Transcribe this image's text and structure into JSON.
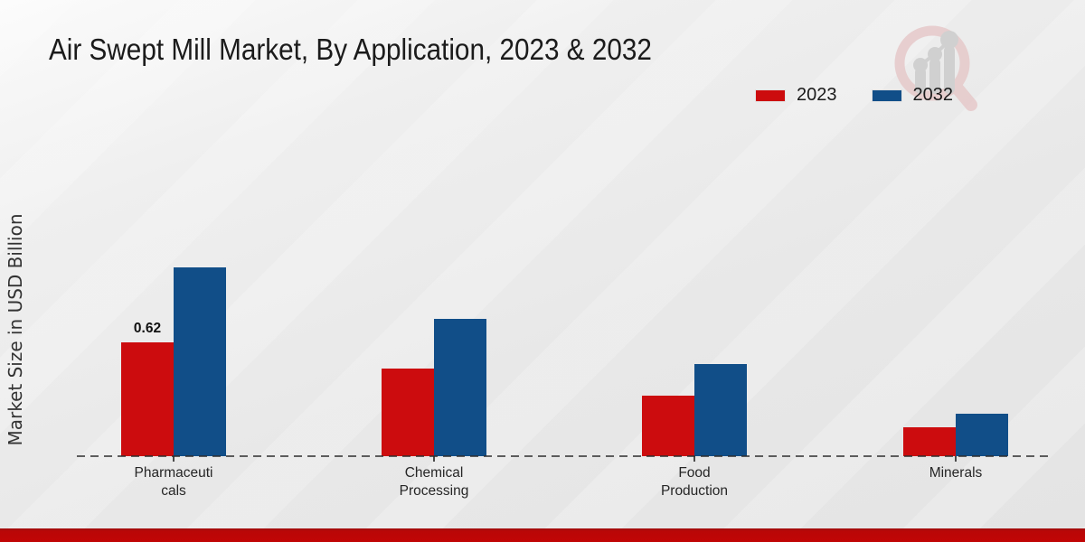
{
  "header": {
    "title": "Air Swept Mill Market, By Application, 2023 & 2032"
  },
  "legend": {
    "items": [
      {
        "label": "2023",
        "color": "#cc0c0e"
      },
      {
        "label": "2032",
        "color": "#114e88"
      }
    ]
  },
  "chart_data": {
    "type": "bar",
    "title": "Air Swept Mill Market, By Application, 2023 & 2032",
    "xlabel": "",
    "ylabel": "Market Size in USD Billion",
    "categories": [
      "Pharmaceuticals",
      "Chemical Processing",
      "Food Production",
      "Minerals"
    ],
    "category_label_lines": [
      [
        "Pharmaceuti",
        "cals"
      ],
      [
        "Chemical",
        "Processing"
      ],
      [
        "Food",
        "Production"
      ],
      [
        "Minerals"
      ]
    ],
    "series": [
      {
        "name": "2023",
        "color": "#cc0c0e",
        "values": [
          0.62,
          0.48,
          0.33,
          0.16
        ]
      },
      {
        "name": "2032",
        "color": "#114e88",
        "values": [
          1.03,
          0.75,
          0.5,
          0.23
        ]
      }
    ],
    "data_labels": [
      {
        "series": "2023",
        "category_index": 0,
        "text": "0.62"
      }
    ],
    "ylim": [
      0,
      1.2
    ],
    "grid": false,
    "axis_style": "dashed-baseline-only",
    "legend_position": "top-right"
  },
  "branding": {
    "logo_icon": "magnifier-bar-chart-logo",
    "footer_color": "#c10505"
  }
}
